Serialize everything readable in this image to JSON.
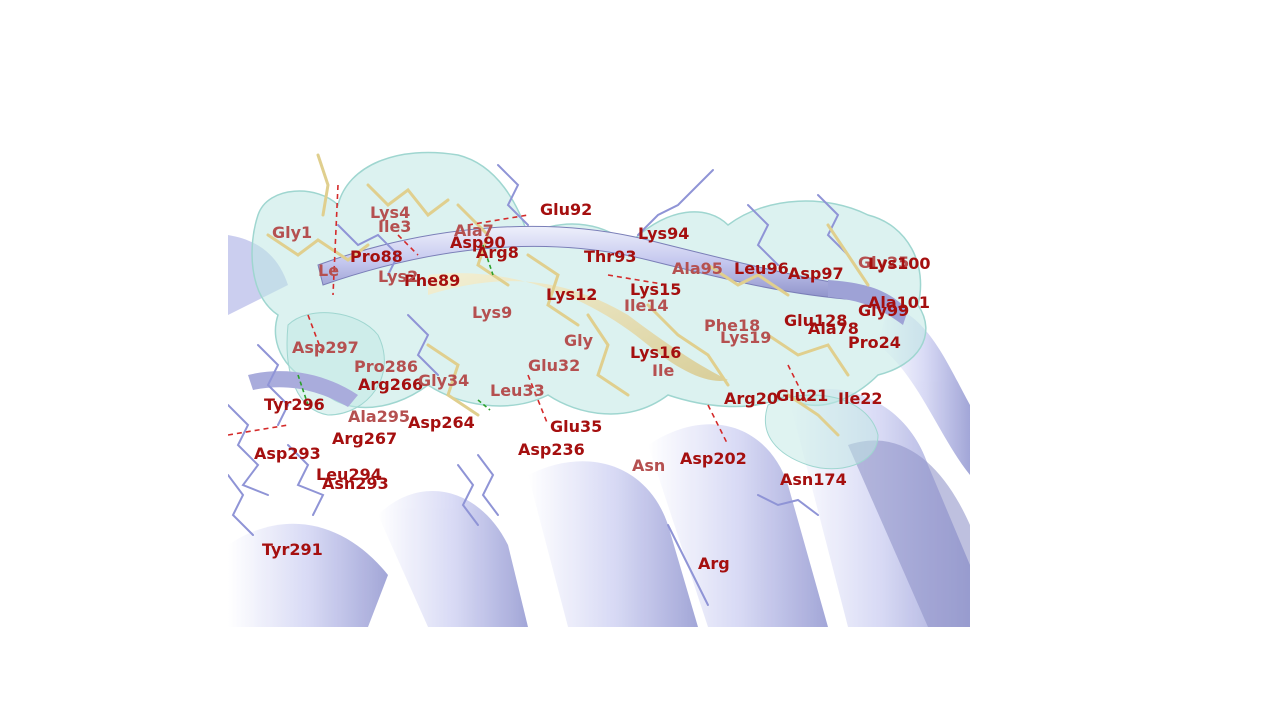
{
  "viewer": {
    "colors": {
      "label": "#a50f0f",
      "label_dim": "#b55050",
      "ribbon": "#b9bce8",
      "ribbon_light": "#dfe1f7",
      "ribbon_dark": "#7b7fb8",
      "sticks": "#8f94d6",
      "ligand": "#e9dca5",
      "surface": "#bfe7e3",
      "hbond": "#d42a2a",
      "hbond_green": "#2aa02a"
    },
    "labels": [
      {
        "text": "Gly1",
        "dim": true
      },
      {
        "text": "Lys4",
        "dim": true
      },
      {
        "text": "Ile3",
        "dim": true
      },
      {
        "text": "Pro88",
        "dim": false
      },
      {
        "text": "Phe89",
        "dim": false
      },
      {
        "text": "Le",
        "dim": true
      },
      {
        "text": "Lys2",
        "dim": true
      },
      {
        "text": "Arg8",
        "dim": false
      },
      {
        "text": "Asp90",
        "dim": false
      },
      {
        "text": "Ala7",
        "dim": true
      },
      {
        "text": "Glu92",
        "dim": false
      },
      {
        "text": "Lys94",
        "dim": false
      },
      {
        "text": "Thr93",
        "dim": false
      },
      {
        "text": "Lys15",
        "dim": false
      },
      {
        "text": "Lys12",
        "dim": false
      },
      {
        "text": "Ile14",
        "dim": true
      },
      {
        "text": "Lys9",
        "dim": true
      },
      {
        "text": "Ala95",
        "dim": true
      },
      {
        "text": "Leu96",
        "dim": false
      },
      {
        "text": "Asp97",
        "dim": false
      },
      {
        "text": "Gly25",
        "dim": true
      },
      {
        "text": "Lys100",
        "dim": false
      },
      {
        "text": "Ala101",
        "dim": false
      },
      {
        "text": "Gly99",
        "dim": false
      },
      {
        "text": "Phe18",
        "dim": true
      },
      {
        "text": "Lys19",
        "dim": true
      },
      {
        "text": "Glu128",
        "dim": false
      },
      {
        "text": "Ala78",
        "dim": false
      },
      {
        "text": "Pro24",
        "dim": false
      },
      {
        "text": "Asp297",
        "dim": true
      },
      {
        "text": "Pro286",
        "dim": true
      },
      {
        "text": "Arg266",
        "dim": false
      },
      {
        "text": "Gly34",
        "dim": true
      },
      {
        "text": "Gly",
        "dim": true
      },
      {
        "text": "Lys16",
        "dim": false
      },
      {
        "text": "Ile",
        "dim": true
      },
      {
        "text": "Glu32",
        "dim": true
      },
      {
        "text": "Leu33",
        "dim": true
      },
      {
        "text": "Tyr296",
        "dim": false
      },
      {
        "text": "Ala295",
        "dim": true
      },
      {
        "text": "Arg267",
        "dim": false
      },
      {
        "text": "Asp264",
        "dim": false
      },
      {
        "text": "Glu35",
        "dim": false
      },
      {
        "text": "Asp236",
        "dim": false
      },
      {
        "text": "Arg20",
        "dim": false
      },
      {
        "text": "Glu21",
        "dim": false
      },
      {
        "text": "Ile22",
        "dim": false
      },
      {
        "text": "Asp293",
        "dim": false
      },
      {
        "text": "Leu294",
        "dim": false
      },
      {
        "text": "Asn293",
        "dim": false
      },
      {
        "text": "Asn",
        "dim": true
      },
      {
        "text": "Asp202",
        "dim": false
      },
      {
        "text": "Asn174",
        "dim": false
      },
      {
        "text": "Tyr291",
        "dim": false
      },
      {
        "text": "Arg",
        "dim": false
      }
    ]
  }
}
